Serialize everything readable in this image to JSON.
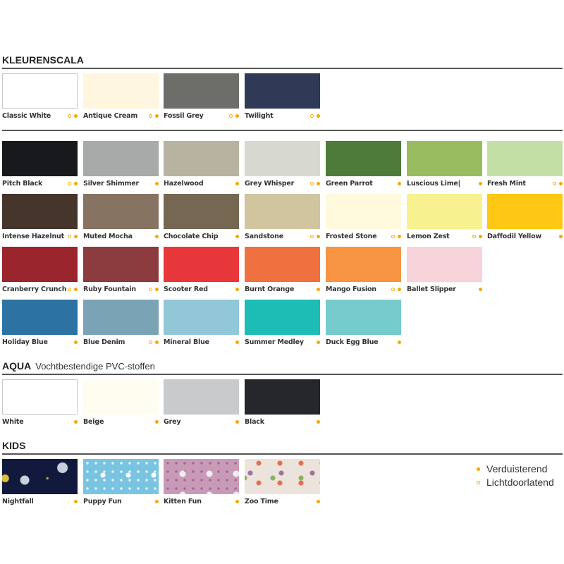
{
  "sections": [
    {
      "title": "KLEURENSCALA",
      "subtitle": "",
      "swatches": [
        {
          "name": "Classic White",
          "color": "#ffffff",
          "dots": [
            "open",
            "filled"
          ]
        },
        {
          "name": "Antique Cream",
          "color": "#fef6de",
          "dots": [
            "open",
            "filled"
          ]
        },
        {
          "name": "Fossil Grey",
          "color": "#6d6e69",
          "dots": [
            "open",
            "filled"
          ]
        },
        {
          "name": "Twilight",
          "color": "#303a57",
          "dots": [
            "open",
            "filled"
          ]
        }
      ]
    },
    {
      "title": "",
      "subtitle": "",
      "swatches": [
        {
          "name": "Pitch Black",
          "color": "#17191c",
          "dots": [
            "open",
            "filled"
          ]
        },
        {
          "name": "Silver Shimmer",
          "color": "#a7aaa8",
          "dots": [
            "filled"
          ]
        },
        {
          "name": "Hazelwood",
          "color": "#b7b3a0",
          "dots": [
            "filled"
          ]
        },
        {
          "name": "Grey Whisper",
          "color": "#d7d8d0",
          "dots": [
            "open",
            "filled"
          ]
        },
        {
          "name": "Green Parrot",
          "color": "#4e7b3a",
          "dots": [
            "filled"
          ]
        },
        {
          "name": "Luscious Lime|",
          "color": "#9abc61",
          "dots": [
            "filled"
          ]
        },
        {
          "name": "Fresh Mint",
          "color": "#c4dfa6",
          "dots": [
            "open",
            "filled"
          ]
        },
        {
          "name": "Intense Hazelnut",
          "color": "#45352b",
          "dots": [
            "open",
            "filled"
          ]
        },
        {
          "name": "Muted Mocha",
          "color": "#877362",
          "dots": [
            "filled"
          ]
        },
        {
          "name": "Chocolate Chip",
          "color": "#766752",
          "dots": [
            "filled"
          ]
        },
        {
          "name": "Sandstone",
          "color": "#d0c59e",
          "dots": [
            "open",
            "filled"
          ]
        },
        {
          "name": "Frosted Stone",
          "color": "#fff9dd",
          "dots": [
            "open",
            "filled"
          ]
        },
        {
          "name": "Lemon Zest",
          "color": "#f7f28f",
          "dots": [
            "open",
            "filled"
          ]
        },
        {
          "name": "Daffodil Yellow",
          "color": "#fec815",
          "dots": [
            "filled"
          ]
        },
        {
          "name": "Cranberry Crunch",
          "color": "#9a252c",
          "dots": [
            "open",
            "filled"
          ]
        },
        {
          "name": "Ruby Fountain",
          "color": "#8c3b3f",
          "dots": [
            "open",
            "filled"
          ]
        },
        {
          "name": "Scooter Red",
          "color": "#e8373a",
          "dots": [
            "filled"
          ]
        },
        {
          "name": "Burnt Orange",
          "color": "#f07140",
          "dots": [
            "filled"
          ]
        },
        {
          "name": "Mango Fusion",
          "color": "#f69442",
          "dots": [
            "open",
            "filled"
          ]
        },
        {
          "name": "Ballet Slipper",
          "color": "#f7d3da",
          "dots": [
            "filled"
          ]
        },
        null,
        {
          "name": "Holiday Blue",
          "color": "#2c73a3",
          "dots": [
            "filled"
          ]
        },
        {
          "name": "Blue Denim",
          "color": "#7aa4b6",
          "dots": [
            "open",
            "filled"
          ]
        },
        {
          "name": "Mineral Blue",
          "color": "#92c7d8",
          "dots": [
            "filled"
          ]
        },
        {
          "name": "Summer Medley",
          "color": "#1dbdb6",
          "dots": [
            "filled"
          ]
        },
        {
          "name": "Duck Egg Blue",
          "color": "#75cbcb",
          "dots": [
            "filled"
          ]
        }
      ]
    },
    {
      "title": "AQUA",
      "subtitle": "Vochtbestendige PVC-stoffen",
      "swatches": [
        {
          "name": "White",
          "color": "#ffffff",
          "dots": [
            "filled"
          ]
        },
        {
          "name": "Beige",
          "color": "#fffdf0",
          "dots": [
            "filled"
          ]
        },
        {
          "name": "Grey",
          "color": "#c8cacb",
          "dots": [
            "filled"
          ]
        },
        {
          "name": "Black",
          "color": "#25272b",
          "dots": [
            "filled"
          ]
        }
      ]
    },
    {
      "title": "KIDS",
      "subtitle": "",
      "swatches": [
        {
          "name": "Nightfall",
          "pattern": "nightfall",
          "dots": [
            "filled"
          ]
        },
        {
          "name": "Puppy Fun",
          "pattern": "puppy",
          "dots": [
            "filled"
          ]
        },
        {
          "name": "Kitten Fun",
          "pattern": "kitten",
          "dots": [
            "filled"
          ]
        },
        {
          "name": "Zoo Time",
          "pattern": "zoo",
          "dots": [
            "filled"
          ]
        }
      ]
    }
  ],
  "legend": {
    "filled_label": "Verduisterend",
    "open_label": "Lichtdoorlatend",
    "accent_color": "#f6a800"
  }
}
